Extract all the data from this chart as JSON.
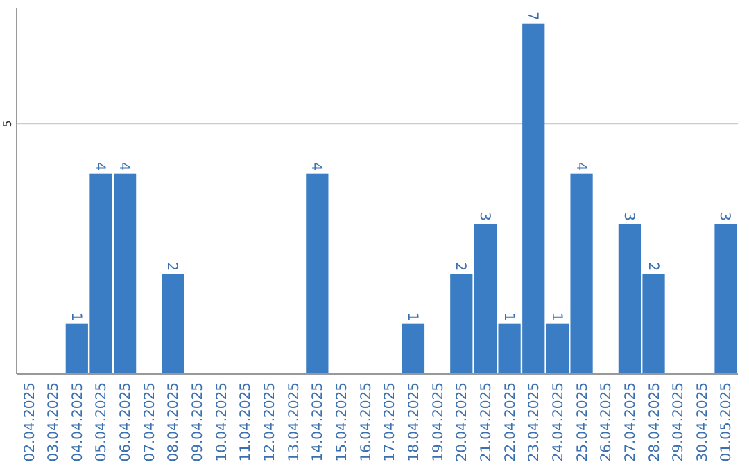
{
  "chart_data": {
    "type": "bar",
    "categories": [
      "02.04.2025",
      "03.04.2025",
      "04.04.2025",
      "05.04.2025",
      "06.04.2025",
      "07.04.2025",
      "08.04.2025",
      "09.04.2025",
      "10.04.2025",
      "11.04.2025",
      "12.04.2025",
      "13.04.2025",
      "14.04.2025",
      "15.04.2025",
      "16.04.2025",
      "17.04.2025",
      "18.04.2025",
      "19.04.2025",
      "20.04.2025",
      "21.04.2025",
      "22.04.2025",
      "23.04.2025",
      "24.04.2025",
      "25.04.2025",
      "26.04.2025",
      "27.04.2025",
      "28.04.2025",
      "29.04.2025",
      "30.04.2025",
      "01.05.2025"
    ],
    "values": [
      0,
      0,
      1,
      4,
      4,
      0,
      2,
      0,
      0,
      0,
      0,
      0,
      4,
      0,
      0,
      0,
      1,
      0,
      2,
      3,
      1,
      7,
      1,
      4,
      0,
      3,
      2,
      0,
      0,
      3
    ],
    "value_labels": [
      null,
      null,
      "1",
      "4",
      "4",
      null,
      "2",
      null,
      null,
      null,
      null,
      null,
      "4",
      null,
      null,
      null,
      "1",
      null,
      "2",
      "3",
      "1",
      "7",
      "1",
      "4",
      null,
      "3",
      "2",
      null,
      null,
      "3"
    ],
    "color": "#3b7dc4",
    "ylim": [
      0,
      7.3
    ],
    "yticks": [
      5
    ],
    "grid": "y"
  }
}
